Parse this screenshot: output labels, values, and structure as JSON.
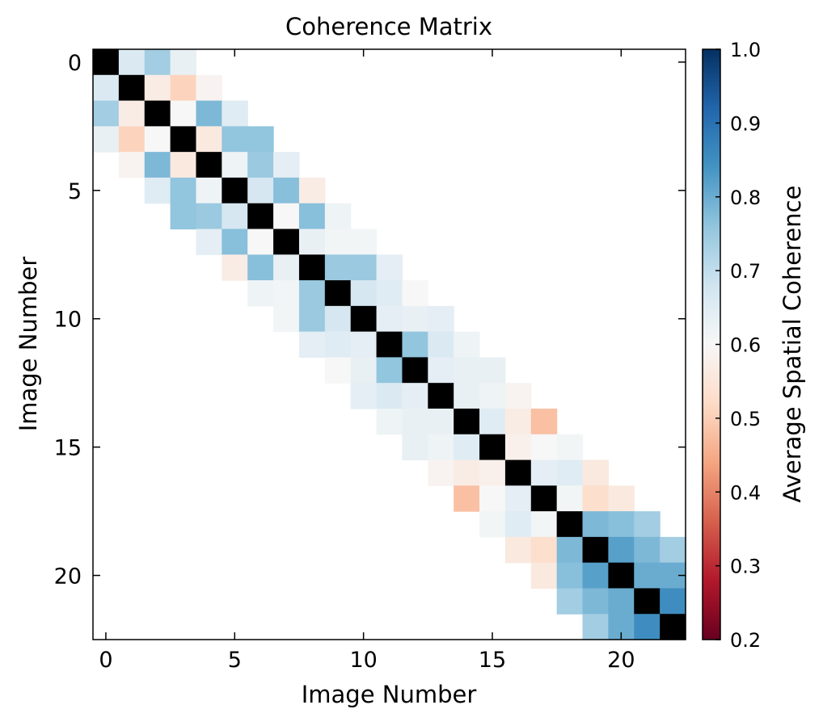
{
  "chart_data": {
    "type": "heatmap",
    "title": "Coherence Matrix",
    "xlabel": "Image Number",
    "ylabel": "Image Number",
    "colorbar_label": "Average Spatial Coherence",
    "n": 23,
    "x_ticks": [
      0,
      5,
      10,
      15,
      20
    ],
    "y_ticks": [
      0,
      5,
      10,
      15,
      20
    ],
    "clim": [
      0.2,
      1.0
    ],
    "colorbar_ticks": [
      "0.2",
      "0.3",
      "0.4",
      "0.5",
      "0.6",
      "0.7",
      "0.8",
      "0.9",
      "1.0"
    ],
    "colormap": "RdBu",
    "diagonal_color": "#000000",
    "band_width": 3,
    "colorbar_position": "right",
    "upper_offdiagonals": [
      [
        0.66,
        0.57,
        0.6,
        0.56,
        0.62,
        0.67,
        0.6,
        0.63,
        0.75,
        0.67,
        0.64,
        0.76,
        0.64,
        0.63,
        0.65,
        0.58,
        0.64,
        0.61,
        0.78,
        0.82,
        0.8,
        0.85
      ],
      [
        0.74,
        0.51,
        0.78,
        0.76,
        0.75,
        0.77,
        0.77,
        0.61,
        0.75,
        0.65,
        0.63,
        0.66,
        0.63,
        0.62,
        0.57,
        0.6,
        0.65,
        0.53,
        0.77,
        0.78,
        0.8
      ],
      [
        0.63,
        0.59,
        0.65,
        0.76,
        0.64,
        0.57,
        0.62,
        0.61,
        0.64,
        0.6,
        0.64,
        0.62,
        0.63,
        0.59,
        0.48,
        0.61,
        0.56,
        0.56,
        0.74,
        0.74
      ]
    ]
  }
}
